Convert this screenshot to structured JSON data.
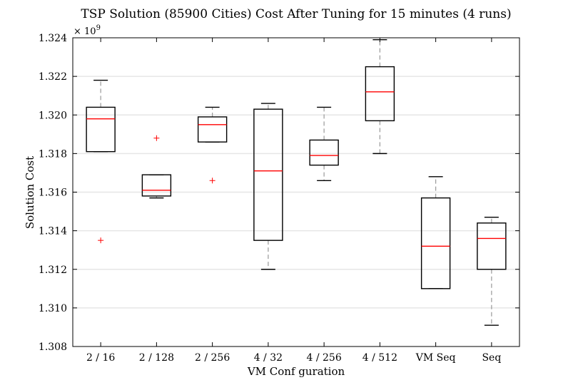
{
  "chart_data": {
    "type": "box",
    "title": "TSP Solution (85900 Cities) Cost After Tuning for 15 minutes (4 runs)",
    "xlabel": "VM Conf guration",
    "ylabel": "Solution Cost",
    "y_multiplier_label": "× 10",
    "y_multiplier_exponent": "9",
    "ylim": [
      1.308,
      1.324
    ],
    "yticks": [
      1.308,
      1.31,
      1.312,
      1.314,
      1.316,
      1.318,
      1.32,
      1.322,
      1.324
    ],
    "ytick_labels": [
      "1.308",
      "1.310",
      "1.312",
      "1.314",
      "1.316",
      "1.318",
      "1.320",
      "1.322",
      "1.324"
    ],
    "grid": "horizontal",
    "categories": [
      "2 / 16",
      "2 / 128",
      "2 / 256",
      "4 / 32",
      "4 / 256",
      "4 / 512",
      "VM Seq",
      "Seq"
    ],
    "boxes": [
      {
        "whisker_low": 1.3181,
        "q1": 1.3181,
        "median": 1.3198,
        "q3": 1.3204,
        "whisker_high": 1.3218,
        "outliers": [
          1.3135
        ]
      },
      {
        "whisker_low": 1.3157,
        "q1": 1.3158,
        "median": 1.3161,
        "q3": 1.3169,
        "whisker_high": 1.3169,
        "outliers": [
          1.3188
        ]
      },
      {
        "whisker_low": 1.3186,
        "q1": 1.3186,
        "median": 1.3195,
        "q3": 1.3199,
        "whisker_high": 1.3204,
        "outliers": [
          1.3166
        ]
      },
      {
        "whisker_low": 1.312,
        "q1": 1.3135,
        "median": 1.3171,
        "q3": 1.3203,
        "whisker_high": 1.3206,
        "outliers": []
      },
      {
        "whisker_low": 1.3166,
        "q1": 1.3174,
        "median": 1.3179,
        "q3": 1.3187,
        "whisker_high": 1.3204,
        "outliers": []
      },
      {
        "whisker_low": 1.318,
        "q1": 1.3197,
        "median": 1.3212,
        "q3": 1.3225,
        "whisker_high": 1.3239,
        "outliers": []
      },
      {
        "whisker_low": 1.311,
        "q1": 1.311,
        "median": 1.3132,
        "q3": 1.3157,
        "whisker_high": 1.3168,
        "outliers": []
      },
      {
        "whisker_low": 1.3091,
        "q1": 1.312,
        "median": 1.3136,
        "q3": 1.3144,
        "whisker_high": 1.3147,
        "outliers": []
      }
    ],
    "colors": {
      "box": "#000000",
      "median": "#ff0000",
      "whisker": "#999999",
      "outlier": "#ff0000",
      "grid": "#e6e6e6"
    }
  }
}
